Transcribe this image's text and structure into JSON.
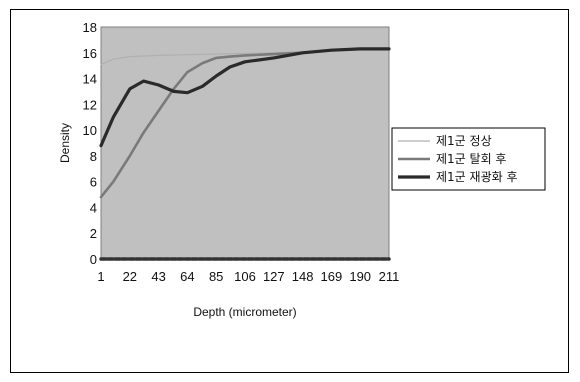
{
  "chart_data": {
    "type": "line",
    "title": "",
    "xlabel": "Depth (micrometer)",
    "ylabel": "Density",
    "x_ticks": [
      "1",
      "22",
      "43",
      "64",
      "85",
      "106",
      "127",
      "148",
      "169",
      "190",
      "211"
    ],
    "x_range": [
      1,
      211
    ],
    "y_ticks": [
      "0",
      "2",
      "4",
      "6",
      "8",
      "10",
      "12",
      "14",
      "16",
      "18"
    ],
    "ylim": [
      0,
      18
    ],
    "grid": false,
    "plot_background": "#c0c0c0",
    "legend_position": "right",
    "series": [
      {
        "name": "제1군 정상",
        "color": "#b0b0b0",
        "style": "thin",
        "x": [
          1,
          10,
          22,
          43,
          64,
          85,
          106,
          127,
          148,
          169,
          190,
          211
        ],
        "y": [
          15.1,
          15.5,
          15.7,
          15.8,
          15.85,
          15.9,
          15.95,
          16.0,
          16.1,
          16.2,
          16.3,
          16.3
        ]
      },
      {
        "name": "제1군 탈회 후",
        "color": "#7a7a7a",
        "style": "medium",
        "x": [
          1,
          10,
          22,
          32,
          43,
          54,
          64,
          75,
          85,
          95,
          106,
          127,
          148,
          169,
          190,
          211
        ],
        "y": [
          4.8,
          6.0,
          8.0,
          9.8,
          11.5,
          13.2,
          14.5,
          15.2,
          15.6,
          15.7,
          15.8,
          15.9,
          16.0,
          16.2,
          16.3,
          16.3
        ]
      },
      {
        "name": "제1군 재광화 후",
        "color": "#2a2a2a",
        "style": "thick",
        "x": [
          1,
          10,
          22,
          32,
          43,
          54,
          64,
          75,
          85,
          95,
          106,
          127,
          148,
          169,
          190,
          211
        ],
        "y": [
          8.8,
          11.0,
          13.2,
          13.8,
          13.5,
          13.0,
          12.9,
          13.4,
          14.2,
          14.9,
          15.3,
          15.6,
          16.0,
          16.2,
          16.3,
          16.3
        ]
      },
      {
        "name": "",
        "color": "#333333",
        "style": "baseline",
        "x": [
          1,
          211
        ],
        "y": [
          0,
          0
        ]
      }
    ]
  }
}
